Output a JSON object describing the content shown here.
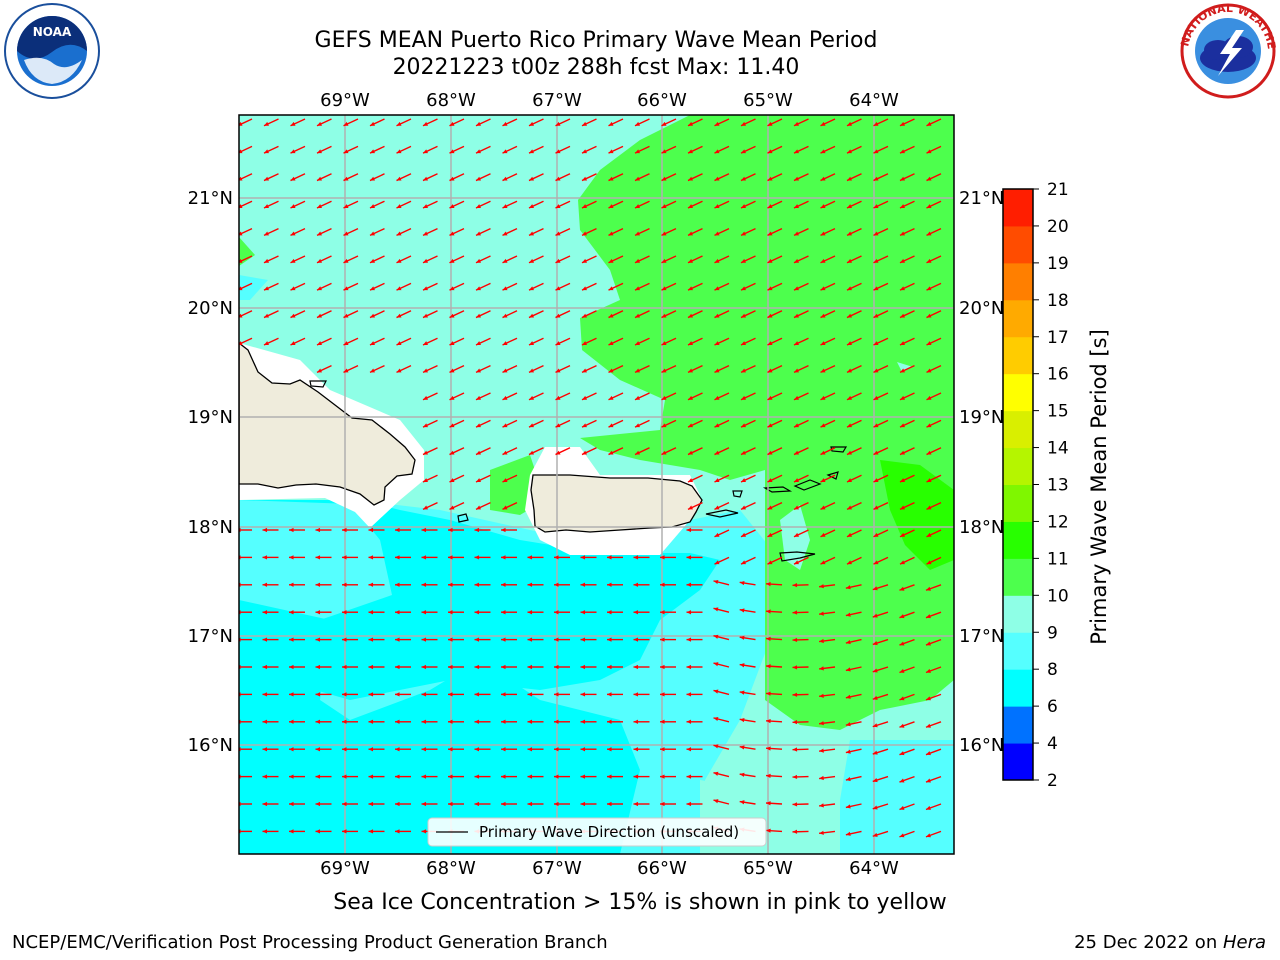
{
  "header": {
    "title_line1": "GEFS MEAN Puerto Rico Primary Wave Mean Period",
    "title_line2": "20221223 t00z 288h fcst   Max: 11.40"
  },
  "logos": {
    "left_icon": "noaa-logo",
    "left_text": "NOAA",
    "right_icon": "nws-logo",
    "right_text": "NATIONAL WEATHER SERVICE"
  },
  "map": {
    "lon_labels": [
      "69°W",
      "68°W",
      "67°W",
      "66°W",
      "65°W",
      "64°W"
    ],
    "lat_labels": [
      "21°N",
      "20°N",
      "19°N",
      "18°N",
      "17°N",
      "16°N"
    ],
    "legend_label": "Primary Wave Direction (unscaled)",
    "colors": {
      "land": "#efecdc",
      "coast": "#000000",
      "arrow": "#ff0000",
      "grid": "#b0b0b0"
    }
  },
  "colorbar": {
    "label": "Primary Wave Mean Period [s]",
    "ticks": [
      "2",
      "4",
      "6",
      "8",
      "9",
      "10",
      "11",
      "12",
      "13",
      "14",
      "15",
      "16",
      "17",
      "18",
      "19",
      "20",
      "21"
    ],
    "colors": [
      "#0000ff",
      "#0072ff",
      "#00ffff",
      "#55ffff",
      "#8effe6",
      "#4dff4d",
      "#28ff00",
      "#7ff700",
      "#b5f500",
      "#d9ef00",
      "#ffff00",
      "#ffcc00",
      "#ffaa00",
      "#ff7f00",
      "#ff4c00",
      "#ff1e00"
    ]
  },
  "caption": "Sea Ice Concentration > 15% is shown in pink to yellow",
  "footer": {
    "left": "NCEP/EMC/Verification Post Processing Product Generation Branch",
    "date": "25 Dec 2022 on ",
    "host": "Hera"
  }
}
